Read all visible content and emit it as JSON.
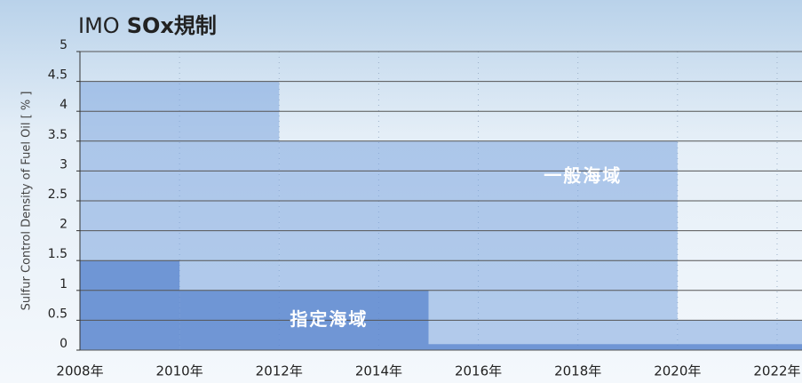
{
  "chart_data": {
    "type": "step-area",
    "title": [
      "IMO",
      "SOx規制"
    ],
    "ylabel": "Sulfur Control Density of Fuel Oil [ % ]",
    "xlim": [
      2008,
      2022.5
    ],
    "ylim": [
      0,
      5
    ],
    "yticks": [
      0,
      0.5,
      1,
      1.5,
      2,
      2.5,
      3,
      3.5,
      4,
      4.5,
      5
    ],
    "xticks": [
      {
        "value": 2008,
        "label": "2008年"
      },
      {
        "value": 2010,
        "label": "2010年"
      },
      {
        "value": 2012,
        "label": "2012年"
      },
      {
        "value": 2014,
        "label": "2014年"
      },
      {
        "value": 2016,
        "label": "2016年"
      },
      {
        "value": 2018,
        "label": "2018年"
      },
      {
        "value": 2020,
        "label": "2020年"
      },
      {
        "value": 2022,
        "label": "2022年"
      }
    ],
    "grid": true,
    "series": [
      {
        "name": "一般海域",
        "color": "rgba(125,165,222,0.55)",
        "x": [
          2008,
          2012,
          2020
        ],
        "values": [
          4.5,
          3.5,
          0.5
        ]
      },
      {
        "name": "指定海域",
        "color": "rgba(90,132,205,0.75)",
        "x": [
          2008,
          2010,
          2015
        ],
        "values": [
          1.5,
          1,
          0.1
        ]
      }
    ],
    "annotations": [
      {
        "text": "一般海域",
        "x": 2018.1,
        "y": 2.9
      },
      {
        "text": "指定海域",
        "x": 2013.0,
        "y": 0.5
      }
    ]
  }
}
